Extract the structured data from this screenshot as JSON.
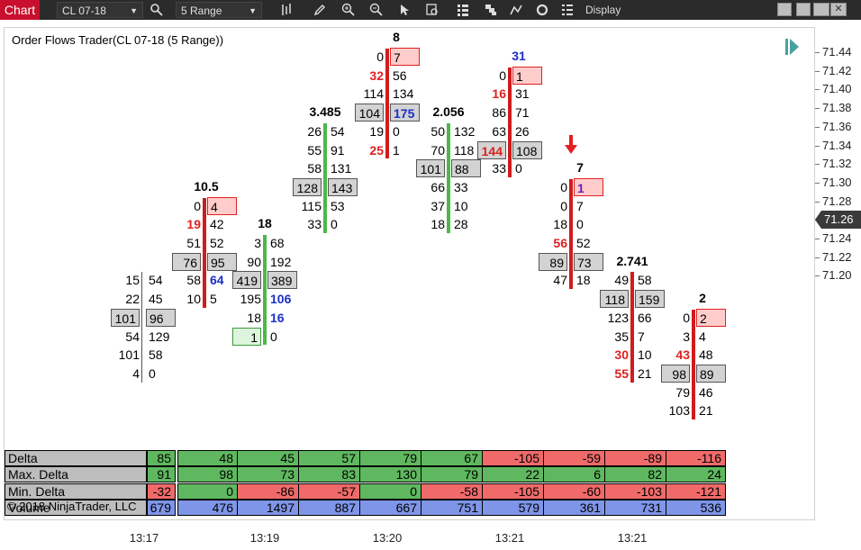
{
  "toolbar": {
    "chart_tab": "Chart",
    "instrument": "CL 07-18",
    "period": "5 Range",
    "display_label": "Display"
  },
  "chart": {
    "title": "Order Flows Trader(CL 07-18 (5 Range))",
    "copyright": "© 2018 NinjaTrader, LLC",
    "current_price": "71.26"
  },
  "yaxis_ticks": [
    "71.44",
    "71.42",
    "71.40",
    "71.38",
    "71.36",
    "71.34",
    "71.32",
    "71.30",
    "71.28",
    "71.26",
    "71.24",
    "71.22",
    "71.20"
  ],
  "xaxis_ticks": [
    "13:17",
    "13:19",
    "13:20",
    "13:21",
    "13:21"
  ],
  "bars": [
    {
      "label": "",
      "cells": [
        [
          "15",
          "54"
        ],
        [
          "22",
          "45"
        ],
        [
          "101",
          "96"
        ],
        [
          "54",
          "129"
        ],
        [
          "101",
          "58"
        ],
        [
          "4",
          "0"
        ]
      ]
    },
    {
      "label": "10.5",
      "cells": [
        [
          "0",
          "4"
        ],
        [
          "19",
          "42"
        ],
        [
          "51",
          "52"
        ],
        [
          "76",
          "95"
        ],
        [
          "58",
          "64"
        ],
        [
          "10",
          "5"
        ]
      ]
    },
    {
      "label": "18",
      "cells": [
        [
          "3",
          "68"
        ],
        [
          "90",
          "192"
        ],
        [
          "419",
          "389"
        ],
        [
          "195",
          "106"
        ],
        [
          "18",
          "16"
        ],
        [
          "1",
          "0"
        ]
      ]
    },
    {
      "label": "3.485",
      "cells": [
        [
          "26",
          "54"
        ],
        [
          "55",
          "91"
        ],
        [
          "58",
          "131"
        ],
        [
          "128",
          "143"
        ],
        [
          "115",
          "53"
        ],
        [
          "33",
          "0"
        ]
      ]
    },
    {
      "label": "8",
      "cells": [
        [
          "0",
          "7"
        ],
        [
          "32",
          "56"
        ],
        [
          "114",
          "134"
        ],
        [
          "104",
          "175"
        ],
        [
          "19",
          "0"
        ],
        [
          "25",
          "1"
        ]
      ]
    },
    {
      "label": "2.056",
      "cells": [
        [
          "50",
          "132"
        ],
        [
          "70",
          "118"
        ],
        [
          "101",
          "88"
        ],
        [
          "66",
          "33"
        ],
        [
          "37",
          "10"
        ],
        [
          "18",
          "28"
        ]
      ]
    },
    {
      "label": "31",
      "cells": [
        [
          "0",
          "1"
        ],
        [
          "16",
          "31"
        ],
        [
          "86",
          "71"
        ],
        [
          "63",
          "26"
        ],
        [
          "144",
          "108"
        ],
        [
          "33",
          "0"
        ]
      ]
    },
    {
      "label": "7",
      "cells": [
        [
          "0",
          "1"
        ],
        [
          "0",
          "7"
        ],
        [
          "18",
          "0"
        ],
        [
          "56",
          "52"
        ],
        [
          "89",
          "73"
        ],
        [
          "47",
          "18"
        ]
      ]
    },
    {
      "label": "2.741",
      "cells": [
        [
          "49",
          "58"
        ],
        [
          "118",
          "159"
        ],
        [
          "123",
          "66"
        ],
        [
          "35",
          "7"
        ],
        [
          "30",
          "10"
        ],
        [
          "55",
          "21"
        ]
      ]
    },
    {
      "label": "2",
      "cells": [
        [
          "0",
          "2"
        ],
        [
          "3",
          "4"
        ],
        [
          "43",
          "48"
        ],
        [
          "98",
          "89"
        ],
        [
          "79",
          "46"
        ],
        [
          "103",
          "21"
        ]
      ]
    }
  ],
  "stats": {
    "labels": [
      "Delta",
      "Max. Delta",
      "Min. Delta",
      "Volume"
    ],
    "delta": [
      "85",
      "48",
      "45",
      "57",
      "79",
      "67",
      "-105",
      "-59",
      "-89",
      "-116"
    ],
    "max_delta": [
      "91",
      "98",
      "73",
      "83",
      "130",
      "79",
      "22",
      "6",
      "82",
      "24"
    ],
    "min_delta": [
      "-32",
      "0",
      "-86",
      "-57",
      "0",
      "-58",
      "-105",
      "-60",
      "-103",
      "-121"
    ],
    "volume": [
      "679",
      "476",
      "1497",
      "887",
      "667",
      "751",
      "579",
      "361",
      "731",
      "536"
    ]
  },
  "colors": {
    "chart_tab": "#c8102e",
    "up_bar": "#4cb84c",
    "down_bar": "#d01c1c",
    "delta_positive": "#5fb85f",
    "delta_negative": "#f06a6a",
    "volume": "#7f95e8"
  }
}
